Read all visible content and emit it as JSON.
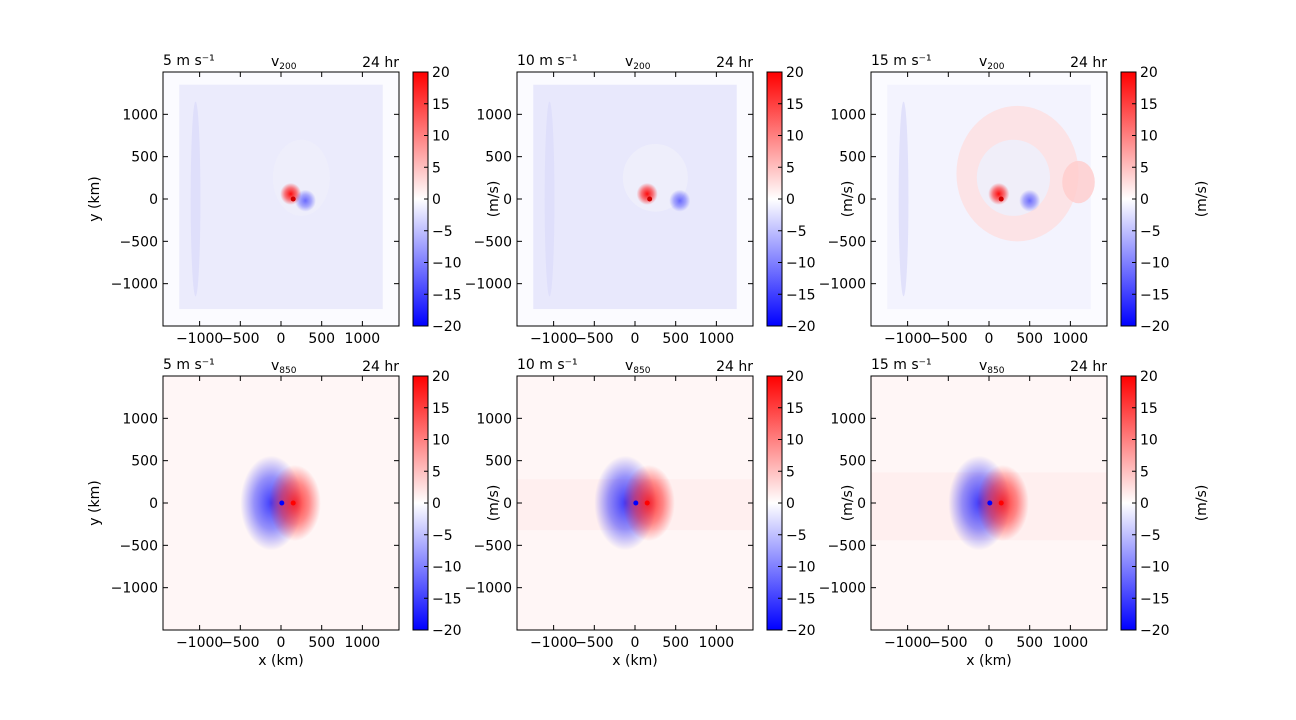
{
  "figure": {
    "colorbar": {
      "min": -20,
      "max": 20,
      "ticks": [
        -20,
        -15,
        -10,
        -5,
        0,
        5,
        10,
        15,
        20
      ],
      "label": "(m/s)",
      "colors": {
        "neg": "#0000ff",
        "mid": "#ffffff",
        "pos": "#ff0000"
      }
    }
  },
  "chart_data": [
    {
      "type": "heatmap",
      "title_left": "5 m s⁻¹",
      "title_center_base": "v",
      "title_center_sub": "200",
      "title_right": "24 hr",
      "xlabel": "",
      "ylabel": "y (km)",
      "xlim": [
        -1450,
        1450
      ],
      "ylim": [
        -1500,
        1500
      ],
      "xticks": [
        -1000,
        -500,
        0,
        500,
        1000
      ],
      "yticks": [
        -1000,
        -500,
        0,
        500,
        1000
      ],
      "xtick_labels": [
        "−1000",
        "−500",
        "0",
        "500",
        "1000"
      ],
      "ytick_labels": [
        "−1000",
        "−500",
        "0",
        "500",
        "1000"
      ]
    },
    {
      "type": "heatmap",
      "title_left": "10 m s⁻¹",
      "title_center_base": "v",
      "title_center_sub": "200",
      "title_right": "24 hr",
      "xlabel": "",
      "ylabel": "",
      "xlim": [
        -1450,
        1450
      ],
      "ylim": [
        -1500,
        1500
      ],
      "xticks": [
        -1000,
        -500,
        0,
        500,
        1000
      ],
      "yticks": [
        -1000,
        -500,
        0,
        500,
        1000
      ],
      "xtick_labels": [
        "−1000",
        "−500",
        "0",
        "500",
        "1000"
      ],
      "ytick_labels": [
        "−1000",
        "−500",
        "0",
        "500",
        "1000"
      ]
    },
    {
      "type": "heatmap",
      "title_left": "15 m s⁻¹",
      "title_center_base": "v",
      "title_center_sub": "200",
      "title_right": "24 hr",
      "xlabel": "",
      "ylabel": "",
      "xlim": [
        -1450,
        1450
      ],
      "ylim": [
        -1500,
        1500
      ],
      "xticks": [
        -1000,
        -500,
        0,
        500,
        1000
      ],
      "yticks": [
        -1000,
        -500,
        0,
        500,
        1000
      ],
      "xtick_labels": [
        "−1000",
        "−500",
        "0",
        "500",
        "1000"
      ],
      "ytick_labels": [
        "−1000",
        "−500",
        "0",
        "500",
        "1000"
      ]
    },
    {
      "type": "heatmap",
      "title_left": "5 m s⁻¹",
      "title_center_base": "v",
      "title_center_sub": "850",
      "title_right": "24 hr",
      "xlabel": "x (km)",
      "ylabel": "y (km)",
      "xlim": [
        -1450,
        1450
      ],
      "ylim": [
        -1500,
        1500
      ],
      "xticks": [
        -1000,
        -500,
        0,
        500,
        1000
      ],
      "yticks": [
        -1000,
        -500,
        0,
        500,
        1000
      ],
      "xtick_labels": [
        "−1000",
        "−500",
        "0",
        "500",
        "1000"
      ],
      "ytick_labels": [
        "−1000",
        "−500",
        "0",
        "500",
        "1000"
      ]
    },
    {
      "type": "heatmap",
      "title_left": "10 m s⁻¹",
      "title_center_base": "v",
      "title_center_sub": "850",
      "title_right": "24 hr",
      "xlabel": "x (km)",
      "ylabel": "",
      "xlim": [
        -1450,
        1450
      ],
      "ylim": [
        -1500,
        1500
      ],
      "xticks": [
        -1000,
        -500,
        0,
        500,
        1000
      ],
      "yticks": [
        -1000,
        -500,
        0,
        500,
        1000
      ],
      "xtick_labels": [
        "−1000",
        "−500",
        "0",
        "500",
        "1000"
      ],
      "ytick_labels": [
        "−1000",
        "−500",
        "0",
        "500",
        "1000"
      ]
    },
    {
      "type": "heatmap",
      "title_left": "15 m s⁻¹",
      "title_center_base": "v",
      "title_center_sub": "850",
      "title_right": "24 hr",
      "xlabel": "x (km)",
      "ylabel": "",
      "xlim": [
        -1450,
        1450
      ],
      "ylim": [
        -1500,
        1500
      ],
      "xticks": [
        -1000,
        -500,
        0,
        500,
        1000
      ],
      "yticks": [
        -1000,
        -500,
        0,
        500,
        1000
      ],
      "xtick_labels": [
        "−1000",
        "−500",
        "0",
        "500",
        "1000"
      ],
      "ytick_labels": [
        "−1000",
        "−500",
        "0",
        "500",
        "1000"
      ]
    }
  ]
}
